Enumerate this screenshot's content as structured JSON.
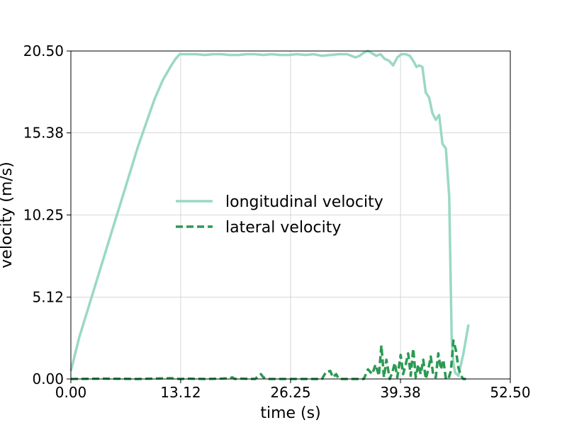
{
  "chart_data": {
    "type": "line",
    "xlabel": "time (s)",
    "ylabel": "velocity (m/s)",
    "xlim": [
      0,
      52.5
    ],
    "ylim": [
      0,
      20.5
    ],
    "xticks": [
      0,
      13.12,
      26.25,
      39.38,
      52.5
    ],
    "xtick_labels": [
      "0.00",
      "13.12",
      "26.25",
      "39.38",
      "52.50"
    ],
    "yticks": [
      0,
      5.12,
      10.25,
      15.38,
      20.5
    ],
    "ytick_labels": [
      "0.00",
      "5.12",
      "10.25",
      "15.38",
      "20.50"
    ],
    "grid": true,
    "legend_position": "center",
    "series": [
      {
        "name": "longitudinal velocity",
        "color": "#9ad8c6",
        "style": "solid",
        "x": [
          0,
          1,
          2,
          3,
          4,
          5,
          6,
          7,
          8,
          9,
          10,
          11,
          12,
          12.5,
          13,
          14,
          15,
          16,
          17,
          18,
          19,
          20,
          21,
          22,
          23,
          24,
          25,
          26,
          27,
          28,
          29,
          30,
          31,
          32,
          33,
          34,
          34.5,
          35,
          35.5,
          36,
          36.5,
          37,
          37.5,
          38,
          38.5,
          39,
          39.5,
          40,
          40.5,
          41,
          41.3,
          41.6,
          42,
          42.4,
          42.8,
          43.2,
          43.6,
          44,
          44.4,
          44.8,
          45.2,
          45.5,
          45.7,
          45.9,
          46.1,
          46.3,
          46.6,
          46.9,
          47.2,
          47.5
        ],
        "y": [
          0.5,
          2.6,
          4.3,
          6.0,
          7.7,
          9.4,
          11.1,
          12.8,
          14.5,
          16.0,
          17.5,
          18.7,
          19.6,
          20.0,
          20.3,
          20.3,
          20.3,
          20.25,
          20.3,
          20.3,
          20.25,
          20.25,
          20.3,
          20.3,
          20.25,
          20.3,
          20.25,
          20.25,
          20.3,
          20.25,
          20.3,
          20.2,
          20.25,
          20.3,
          20.3,
          20.1,
          20.2,
          20.4,
          20.5,
          20.35,
          20.2,
          20.3,
          20.0,
          19.9,
          19.6,
          20.1,
          20.3,
          20.3,
          20.2,
          19.8,
          19.5,
          19.6,
          19.5,
          17.9,
          17.6,
          16.6,
          16.2,
          16.5,
          14.7,
          14.4,
          11.4,
          2.5,
          1.0,
          0.4,
          0.3,
          0.2,
          0.9,
          1.6,
          2.5,
          3.4
        ]
      },
      {
        "name": "lateral velocity",
        "color": "#2a9a52",
        "style": "dashed",
        "x": [
          0,
          4,
          8,
          12,
          13,
          14,
          16,
          18,
          19,
          19.3,
          19.6,
          20,
          22,
          22.7,
          23,
          23.4,
          24,
          26,
          28,
          30,
          30.5,
          31,
          31.3,
          31.7,
          32,
          34,
          35,
          35.5,
          36,
          36.4,
          36.8,
          37.1,
          37.4,
          37.7,
          38.1,
          38.4,
          38.7,
          39,
          39.4,
          39.7,
          40,
          40.3,
          40.6,
          40.9,
          41.2,
          41.5,
          41.8,
          42.1,
          42.4,
          42.7,
          43,
          43.3,
          43.6,
          43.9,
          44.2,
          44.5,
          44.8,
          45.1,
          45.4,
          45.7,
          46,
          46.3,
          46.6,
          46.9,
          47.2
        ],
        "y": [
          0.0,
          0.02,
          0.0,
          0.05,
          0.0,
          0.02,
          0.0,
          0.02,
          0.05,
          0.1,
          0.0,
          0.02,
          0.0,
          0.3,
          0.1,
          0.0,
          0.0,
          0.0,
          0.0,
          0.0,
          0.45,
          0.5,
          0.1,
          0.3,
          0.0,
          0.0,
          0.0,
          0.6,
          0.3,
          0.9,
          0.2,
          2.1,
          0.1,
          1.2,
          0.0,
          0.4,
          1.0,
          0.1,
          1.5,
          0.3,
          0.9,
          1.6,
          0.2,
          1.9,
          0.1,
          0.9,
          0.3,
          1.2,
          0.0,
          0.6,
          1.4,
          0.2,
          0.1,
          1.6,
          0.6,
          1.2,
          0.0,
          0.0,
          0.5,
          2.4,
          1.8,
          0.7,
          0.2,
          0.0,
          0.0
        ]
      }
    ]
  }
}
